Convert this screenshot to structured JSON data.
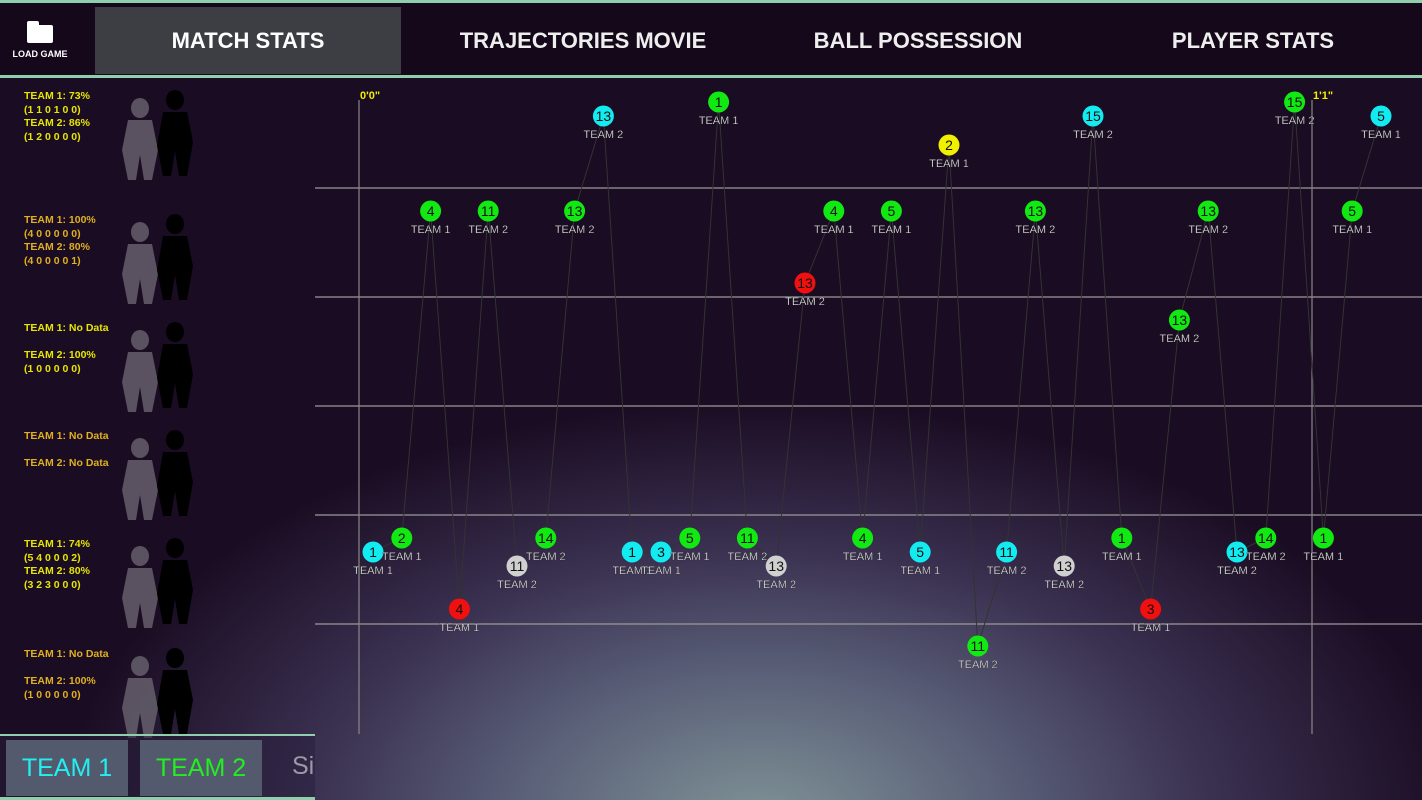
{
  "nav": {
    "load_label": "LOAD GAME",
    "tabs": [
      {
        "label": "MATCH STATS",
        "active": true
      },
      {
        "label": "TRAJECTORIES MOVIE"
      },
      {
        "label": "BALL POSSESSION"
      },
      {
        "label": "PLAYER STATS"
      }
    ]
  },
  "stats": [
    {
      "lines": [
        "TEAM 1: 73%",
        "(1 1 0 1 0 0)",
        "TEAM 2: 86%",
        "(1 2 0 0 0 0)"
      ],
      "color": "#e6e600"
    },
    {
      "lines": [
        "TEAM 1: 100%",
        "(4 0 0 0 0 0)",
        "TEAM 2: 80%",
        "(4 0 0 0 0 1)"
      ],
      "color": "#e0b020"
    },
    {
      "lines": [
        "TEAM 1: No Data",
        "",
        "TEAM 2: 100%",
        "(1 0 0 0 0 0)"
      ],
      "color": "#e6e600"
    },
    {
      "lines": [
        "TEAM 1: No Data",
        "",
        "TEAM 2: No Data",
        ""
      ],
      "color": "#e0b020"
    },
    {
      "lines": [
        "TEAM 1: 74%",
        "(5 4 0 0 0 2)",
        "TEAM 2: 80%",
        "(3 2 3 0 0 0)"
      ],
      "color": "#e6e600"
    },
    {
      "lines": [
        "TEAM 1: No Data",
        "",
        "TEAM 2: 100%",
        "(1 0 0 0 0 0)"
      ],
      "color": "#e0b020"
    }
  ],
  "bottom": {
    "team1": "TEAM 1",
    "team2": "TEAM 2",
    "more": "Si",
    "team1_color": "#22f0f0",
    "team2_color": "#22ee22"
  },
  "timeline": {
    "time_marks": [
      "0'0\"",
      "1'1\""
    ],
    "colors": {
      "cyan": "#12ecf0",
      "green": "#12e812",
      "red": "#f01010",
      "yellow": "#f0f000",
      "gray": "#d0d0d0"
    },
    "events": [
      {
        "n": "1",
        "team": "TEAM 1",
        "c": "cyan",
        "row": 4
      },
      {
        "n": "2",
        "team": "TEAM 1",
        "c": "green",
        "row": 4
      },
      {
        "n": "4",
        "team": "TEAM 1",
        "c": "green",
        "row": 1
      },
      {
        "n": "4",
        "team": "TEAM 1",
        "c": "red",
        "row": 5
      },
      {
        "n": "11",
        "team": "TEAM 2",
        "c": "green",
        "row": 1
      },
      {
        "n": "11",
        "team": "TEAM 2",
        "c": "gray",
        "row": 4
      },
      {
        "n": "14",
        "team": "TEAM 2",
        "c": "green",
        "row": 4
      },
      {
        "n": "13",
        "team": "TEAM 2",
        "c": "green",
        "row": 1
      },
      {
        "n": "13",
        "team": "TEAM 2",
        "c": "cyan",
        "row": 0
      },
      {
        "n": "1",
        "team": "TEAM 1",
        "c": "cyan",
        "row": 4
      },
      {
        "n": "3",
        "team": "TEAM 1",
        "c": "cyan",
        "row": 4
      },
      {
        "n": "5",
        "team": "TEAM 1",
        "c": "green",
        "row": 4
      },
      {
        "n": "1",
        "team": "TEAM 1",
        "c": "green",
        "row": 0
      },
      {
        "n": "11",
        "team": "TEAM 2",
        "c": "green",
        "row": 4
      },
      {
        "n": "13",
        "team": "TEAM 2",
        "c": "gray",
        "row": 4
      },
      {
        "n": "13",
        "team": "TEAM 2",
        "c": "red",
        "row": 2
      },
      {
        "n": "4",
        "team": "TEAM 1",
        "c": "green",
        "row": 1
      },
      {
        "n": "4",
        "team": "TEAM 1",
        "c": "green",
        "row": 4
      },
      {
        "n": "5",
        "team": "TEAM 1",
        "c": "green",
        "row": 1
      },
      {
        "n": "5",
        "team": "TEAM 1",
        "c": "cyan",
        "row": 4
      },
      {
        "n": "2",
        "team": "TEAM 1",
        "c": "yellow",
        "row": 0
      },
      {
        "n": "11",
        "team": "TEAM 2",
        "c": "green",
        "row": 5
      },
      {
        "n": "11",
        "team": "TEAM 2",
        "c": "cyan",
        "row": 4
      },
      {
        "n": "13",
        "team": "TEAM 2",
        "c": "green",
        "row": 1
      },
      {
        "n": "13",
        "team": "TEAM 2",
        "c": "gray",
        "row": 4
      },
      {
        "n": "15",
        "team": "TEAM 2",
        "c": "cyan",
        "row": 0
      },
      {
        "n": "1",
        "team": "TEAM 1",
        "c": "green",
        "row": 4
      },
      {
        "n": "3",
        "team": "TEAM 1",
        "c": "red",
        "row": 5
      },
      {
        "n": "13",
        "team": "TEAM 2",
        "c": "green",
        "row": 2
      },
      {
        "n": "13",
        "team": "TEAM 2",
        "c": "green",
        "row": 1
      },
      {
        "n": "13",
        "team": "TEAM 2",
        "c": "cyan",
        "row": 4
      },
      {
        "n": "14",
        "team": "TEAM 2",
        "c": "green",
        "row": 4
      },
      {
        "n": "15",
        "team": "TEAM 2",
        "c": "green",
        "row": 0
      },
      {
        "n": "1",
        "team": "TEAM 1",
        "c": "green",
        "row": 4
      },
      {
        "n": "5",
        "team": "TEAM 1",
        "c": "green",
        "row": 1
      },
      {
        "n": "5",
        "team": "TEAM 1",
        "c": "cyan",
        "row": 0
      }
    ]
  }
}
